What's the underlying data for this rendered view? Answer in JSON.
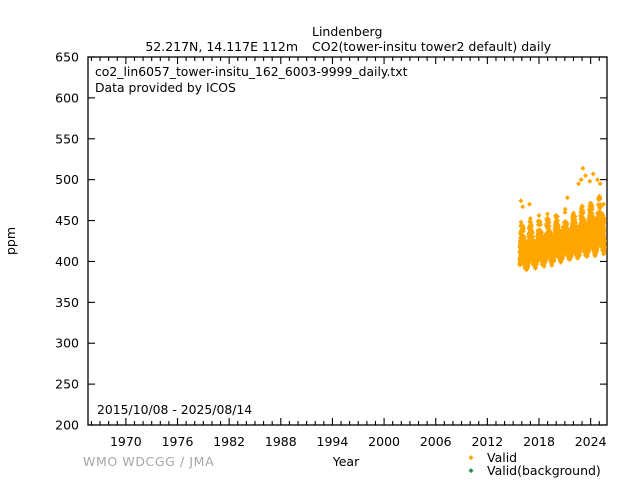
{
  "figure": {
    "title": {
      "station": "Lindenberg",
      "coords": "52.217N, 14.117E 112m",
      "parameter": "CO2(tower-insitu tower2 default) daily"
    },
    "annotations": {
      "file": "co2_lin6057_tower-insitu_162_6003-9999_daily.txt",
      "provider": "Data provided by ICOS",
      "date_range": "2015/10/08 - 2025/08/14"
    },
    "footer": {
      "left": "WMO WDCGG / JMA",
      "xlabel": "Year"
    },
    "ylabel": "ppm",
    "legend": [
      {
        "label": "Valid",
        "color": "#FFA500"
      },
      {
        "label": "Valid(background)",
        "color": "#2E8B57"
      }
    ]
  },
  "chart_data": {
    "type": "scatter",
    "title": "Lindenberg  CO2(tower-insitu tower2 default) daily",
    "xlabel": "Year",
    "ylabel": "ppm",
    "xlim": [
      1965.6,
      2025.9
    ],
    "ylim": [
      200,
      650
    ],
    "x_major_ticks": [
      1970,
      1976,
      1982,
      1988,
      1994,
      2000,
      2006,
      2012,
      2018,
      2024
    ],
    "x_minor_tick_step_years": 1,
    "y_ticks": [
      200,
      250,
      300,
      350,
      400,
      450,
      500,
      550,
      600,
      650
    ],
    "grid": false,
    "legend_position": "below-right",
    "marker": "filled-diamond",
    "series": [
      {
        "name": "Valid",
        "color": "#FFA500",
        "cadence": "daily",
        "start_decimal_year": 2015.77,
        "end_decimal_year": 2025.62,
        "approx_point_count": 3595,
        "baseline_ppm_at_2016": 400.5,
        "trend_ppm_per_year": 2.3,
        "seasonal_amplitude_ppm": 7,
        "seasonal_max_phase": "mid-January",
        "spike_tail_ppm_summer": 30,
        "spike_tail_ppm_winter": 46,
        "dense_band_ppm": [
          390,
          470
        ],
        "observed_extremes_ppm": {
          "min": 388,
          "max": 514
        },
        "outliers": [
          [
            2015.9,
            474
          ],
          [
            2016.1,
            467
          ],
          [
            2016.9,
            470
          ],
          [
            2021.3,
            478
          ],
          [
            2022.6,
            495
          ],
          [
            2022.9,
            500
          ],
          [
            2023.1,
            514
          ],
          [
            2023.4,
            505
          ],
          [
            2023.9,
            498
          ],
          [
            2024.3,
            507
          ],
          [
            2024.8,
            500
          ],
          [
            2025.1,
            495
          ],
          [
            2025.5,
            470
          ]
        ]
      },
      {
        "name": "Valid(background)",
        "color": "#2E8B57",
        "points": []
      }
    ]
  }
}
